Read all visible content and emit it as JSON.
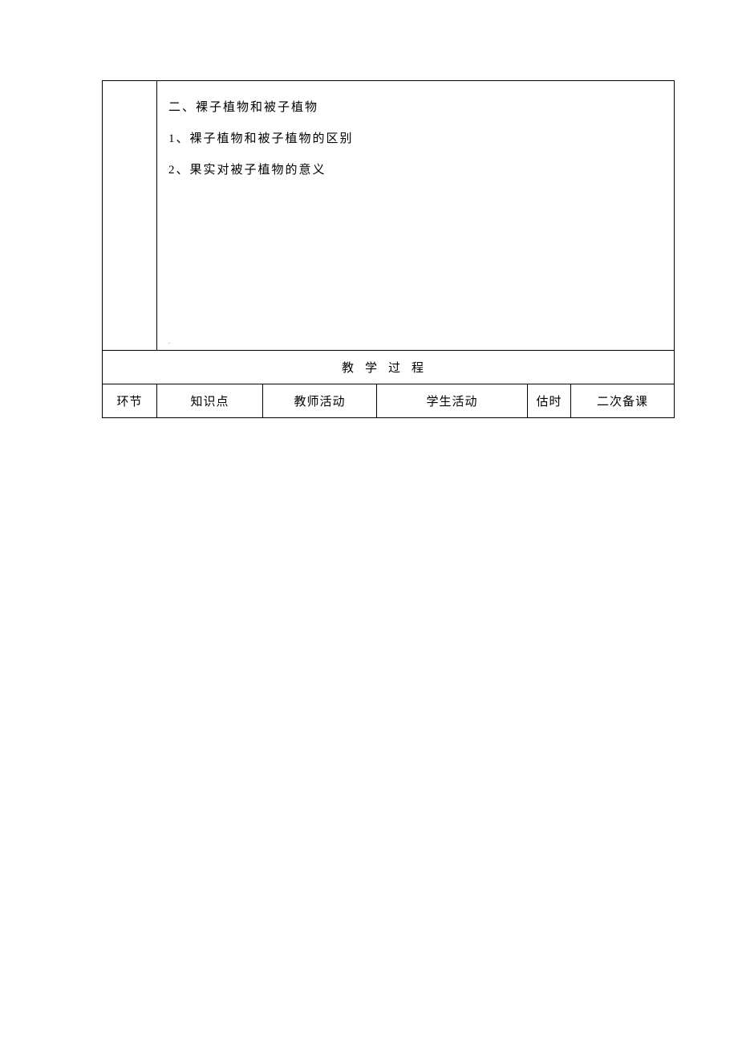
{
  "content": {
    "heading": "二、裸子植物和被子植物",
    "item1": "1、裸子植物和被子植物的区别",
    "item2": "2、果实对被子植物的意义",
    "marker": "."
  },
  "section_header": "教学过程",
  "columns": {
    "c1": "环节",
    "c2": "知识点",
    "c3": "教师活动",
    "c4": "学生活动",
    "c5": "估时",
    "c6": "二次备课"
  },
  "styling": {
    "body_width": 920,
    "body_height": 1302,
    "border_color": "#000000",
    "text_color": "#000000",
    "marker_color": "#808000",
    "background_color": "#ffffff",
    "font_family": "SimSun",
    "content_fontsize": 15,
    "content_line_height": 2.6,
    "content_letter_spacing": 2,
    "header_letter_spacing": 14
  }
}
